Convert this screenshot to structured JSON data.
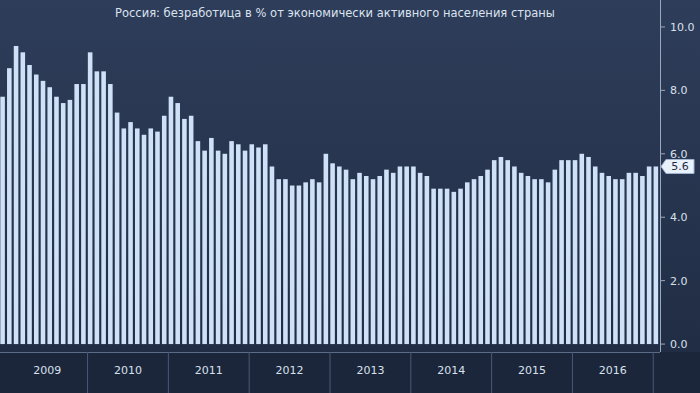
{
  "chart_data": {
    "type": "bar",
    "title": "Россия: безработица в % от экономически активного населения страны",
    "categories": [
      null,
      null,
      null,
      null,
      null,
      null,
      "2009",
      null,
      null,
      null,
      null,
      null,
      null,
      null,
      null,
      null,
      null,
      null,
      "2010",
      null,
      null,
      null,
      null,
      null,
      null,
      null,
      null,
      null,
      null,
      null,
      "2011",
      null,
      null,
      null,
      null,
      null,
      null,
      null,
      null,
      null,
      null,
      null,
      "2012",
      null,
      null,
      null,
      null,
      null,
      null,
      null,
      null,
      null,
      null,
      null,
      "2013",
      null,
      null,
      null,
      null,
      null,
      null,
      null,
      null,
      null,
      null,
      null,
      "2014",
      null,
      null,
      null,
      null,
      null,
      null,
      null,
      null,
      null,
      null,
      null,
      "2015",
      null,
      null,
      null,
      null,
      null,
      null,
      null,
      null,
      null,
      null,
      null,
      "2016",
      null,
      null,
      null,
      null,
      null,
      null,
      null
    ],
    "values": [
      7.8,
      8.7,
      9.4,
      9.2,
      8.8,
      8.5,
      8.3,
      8.1,
      7.8,
      7.6,
      7.7,
      8.2,
      8.2,
      9.2,
      8.6,
      8.6,
      8.2,
      7.3,
      6.8,
      7.0,
      6.8,
      6.6,
      6.8,
      6.7,
      7.2,
      7.8,
      7.6,
      7.1,
      7.2,
      6.4,
      6.1,
      6.5,
      6.1,
      6.0,
      6.4,
      6.3,
      6.1,
      6.3,
      6.2,
      6.3,
      5.6,
      5.2,
      5.2,
      5.0,
      5.0,
      5.1,
      5.2,
      5.1,
      6.0,
      5.7,
      5.6,
      5.5,
      5.2,
      5.4,
      5.3,
      5.2,
      5.3,
      5.5,
      5.4,
      5.6,
      5.6,
      5.6,
      5.4,
      5.3,
      4.9,
      4.9,
      4.9,
      4.8,
      4.9,
      5.1,
      5.2,
      5.3,
      5.5,
      5.8,
      5.9,
      5.8,
      5.6,
      5.4,
      5.3,
      5.2,
      5.2,
      5.1,
      5.5,
      5.8,
      5.8,
      5.8,
      6.0,
      5.9,
      5.6,
      5.4,
      5.3,
      5.2,
      5.2,
      5.4,
      5.4,
      5.3,
      5.6,
      5.6
    ],
    "color": "#cfe1f6",
    "ylim": [
      -0.25,
      10.85
    ],
    "yticks": [
      {
        "value": 0,
        "label": "0.0"
      },
      {
        "value": 2,
        "label": "2.0"
      },
      {
        "value": 4,
        "label": "4.0"
      },
      {
        "value": 6,
        "label": "6.0"
      },
      {
        "value": 8,
        "label": "8.0"
      },
      {
        "value": 10,
        "label": "10.0"
      }
    ],
    "annotations": [
      {
        "text": "5.6",
        "value": 5.6
      }
    ],
    "grid": false
  }
}
